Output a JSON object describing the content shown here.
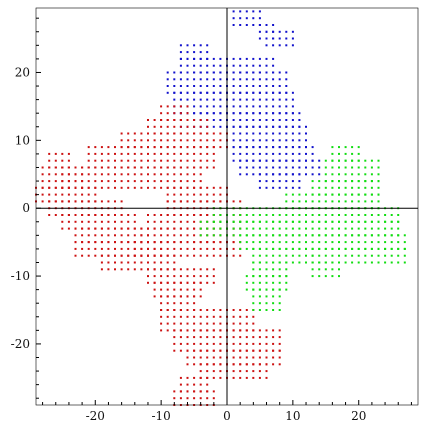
{
  "chart_data": {
    "type": "scatter",
    "xlim": [
      -29,
      29
    ],
    "ylim": [
      -29,
      29.5
    ],
    "grid": false,
    "legend": "none",
    "x_major_ticks": [
      -20,
      -10,
      0,
      10,
      20
    ],
    "y_major_ticks": [
      -20,
      -10,
      0,
      10,
      20
    ],
    "x_tick_labels": [
      "-20",
      "-10",
      "0",
      "10",
      "20"
    ],
    "y_tick_labels": [
      "-20",
      "-10",
      "0",
      "10",
      "20"
    ],
    "minor_tick_step": 2,
    "series": [
      {
        "color": "#1111cc",
        "rectangles": [
          [
            1,
            5,
            27,
            29
          ],
          [
            5,
            7,
            25,
            27
          ],
          [
            6,
            10,
            24,
            26
          ],
          [
            -7,
            -3,
            22,
            24
          ],
          [
            -7,
            7,
            20,
            22
          ],
          [
            -9,
            9,
            17,
            20
          ],
          [
            -8,
            10,
            14,
            17
          ],
          [
            -7,
            11,
            12,
            14
          ],
          [
            0,
            12,
            9,
            12
          ],
          [
            1,
            13,
            7,
            9
          ],
          [
            2,
            14,
            5,
            7
          ],
          [
            5,
            11,
            3,
            5
          ]
        ]
      },
      {
        "color": "#cc1111",
        "rectangles": [
          [
            -27,
            -24,
            6,
            8
          ],
          [
            -28,
            -22,
            3,
            6
          ],
          [
            -29,
            -20,
            1,
            3
          ],
          [
            -27,
            -16,
            -1,
            1
          ],
          [
            -25,
            -14,
            -3,
            -1
          ],
          [
            -23,
            -12,
            -5,
            -3
          ],
          [
            -23,
            -10,
            -7,
            -5
          ],
          [
            -19,
            -8,
            -9,
            -7
          ],
          [
            -12,
            -2,
            -11,
            -9
          ],
          [
            -11,
            -4,
            -13,
            -11
          ],
          [
            -10,
            -5,
            -15,
            -13
          ],
          [
            -10,
            4,
            -18,
            -15
          ],
          [
            -8,
            8,
            -21,
            -18
          ],
          [
            -6,
            8,
            -23,
            -21
          ],
          [
            -4,
            6,
            -25,
            -23
          ],
          [
            -7,
            -3,
            -27,
            -25
          ],
          [
            -8,
            -2,
            -29,
            -27
          ],
          [
            -25,
            -4,
            3,
            6
          ],
          [
            -21,
            -2,
            6,
            9
          ],
          [
            -16,
            0,
            9,
            11
          ],
          [
            -12,
            -3,
            11,
            13
          ],
          [
            -10,
            -6,
            13,
            15
          ],
          [
            -9,
            0,
            1,
            3
          ],
          [
            -9,
            2,
            -1,
            1
          ],
          [
            -12,
            2,
            -3,
            -1
          ],
          [
            -13,
            1,
            -5,
            -3
          ],
          [
            -14,
            2,
            -7,
            -5
          ]
        ]
      },
      {
        "color": "#11dd11",
        "rectangles": [
          [
            16,
            20,
            7,
            9
          ],
          [
            15,
            23,
            4,
            7
          ],
          [
            13,
            23,
            2,
            4
          ],
          [
            9,
            23,
            0,
            2
          ],
          [
            -2,
            26,
            -2,
            0
          ],
          [
            -4,
            26,
            -4,
            -2
          ],
          [
            2,
            27,
            -6,
            -4
          ],
          [
            4,
            13,
            -8,
            -6
          ],
          [
            13,
            17,
            -8,
            -6
          ],
          [
            18,
            19,
            -8,
            -6
          ],
          [
            4,
            9,
            -10,
            -8
          ],
          [
            13,
            17,
            -10,
            -8
          ],
          [
            3,
            9,
            -12,
            -10
          ],
          [
            4,
            8,
            -15,
            -12
          ],
          [
            20,
            27,
            -8,
            -6
          ]
        ]
      }
    ]
  }
}
